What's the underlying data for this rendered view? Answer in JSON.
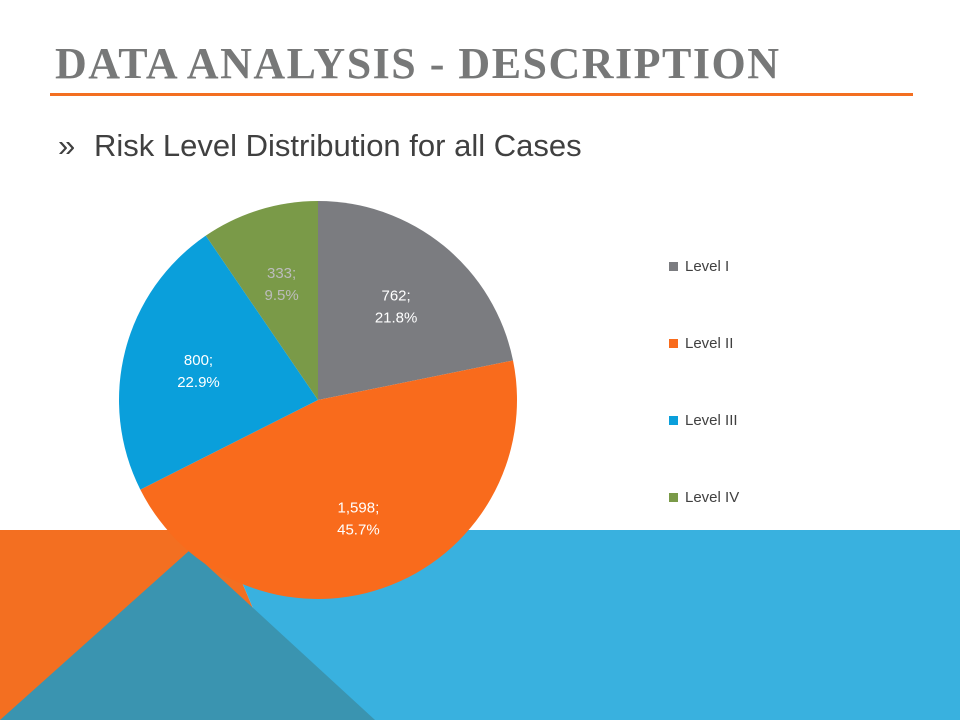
{
  "slide": {
    "title": "DATA ANALYSIS - DESCRIPTION",
    "bullet_marker": "»",
    "bullet_text": "Risk Level Distribution for all Cases"
  },
  "colors": {
    "title": "#777878",
    "accent_orange": "#f36f21",
    "accent_blue": "#39b1df",
    "accent_dark_blue": "#3a94b0"
  },
  "chart_data": {
    "type": "pie",
    "title": "",
    "legend_position": "right",
    "categories": [
      "Level I",
      "Level II",
      "Level III",
      "Level IV"
    ],
    "values": [
      762,
      1598,
      800,
      333
    ],
    "percents": [
      21.8,
      45.7,
      22.9,
      9.5
    ],
    "data_labels": [
      {
        "line1": "762;",
        "line2": "21.8%"
      },
      {
        "line1": "1,598;",
        "line2": "45.7%"
      },
      {
        "line1": "800;",
        "line2": "22.9%"
      },
      {
        "line1": "333;",
        "line2": "9.5%"
      }
    ],
    "colors": [
      "#7b7c80",
      "#f96b1c",
      "#0a9fdb",
      "#7a9a48"
    ],
    "label_colors": [
      "#ffffff",
      "#ffffff",
      "#ffffff",
      "#bcbcbc"
    ],
    "start_angle_deg": 0,
    "direction": "clockwise"
  }
}
